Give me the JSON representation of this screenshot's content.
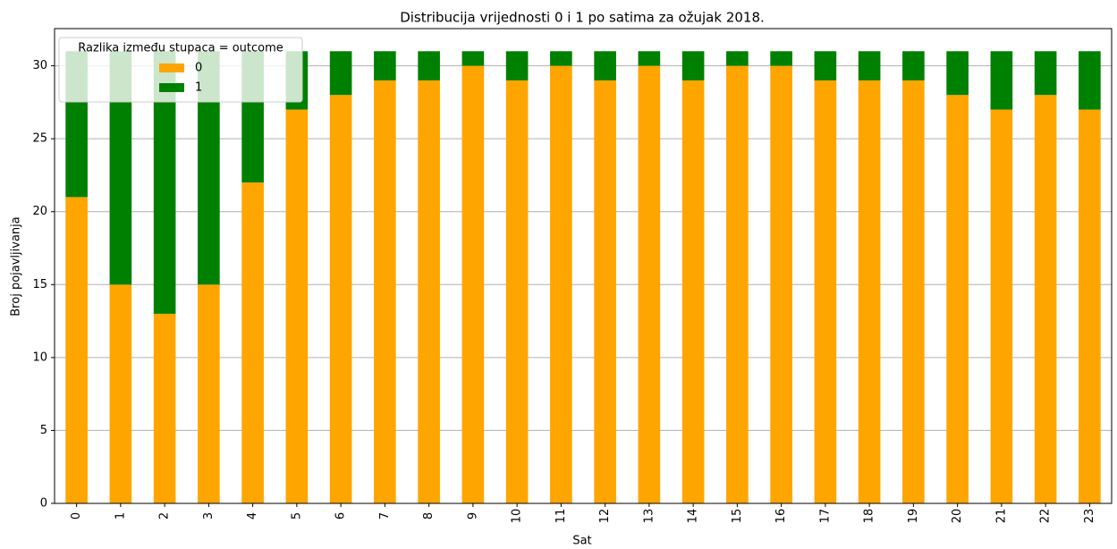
{
  "chart_data": {
    "type": "stacked_bar",
    "title": "Distribucija vrijednosti 0 i 1 po satima za ožujak 2018.",
    "x_label": "Sat",
    "y_label": "Broj pojavljivanja",
    "legend_title": "Razlika između stupaca = outcome",
    "legend": "upper left",
    "categories": [
      "0",
      "1",
      "2",
      "3",
      "4",
      "5",
      "6",
      "7",
      "8",
      "9",
      "10",
      "11",
      "12",
      "13",
      "14",
      "15",
      "16",
      "17",
      "18",
      "19",
      "20",
      "21",
      "22",
      "23"
    ],
    "series": [
      {
        "name": "0",
        "color": "#ffa500",
        "values": [
          21,
          15,
          13,
          15,
          22,
          27,
          28,
          29,
          29,
          30,
          29,
          30,
          29,
          30,
          29,
          30,
          30,
          29,
          29,
          29,
          28,
          27,
          28,
          27
        ]
      },
      {
        "name": "1",
        "color": "#008000",
        "values": [
          10,
          16,
          18,
          16,
          9,
          4,
          3,
          2,
          2,
          1,
          2,
          1,
          2,
          1,
          2,
          1,
          1,
          2,
          2,
          2,
          3,
          4,
          3,
          4
        ]
      }
    ],
    "ylim": [
      0,
      32.55
    ],
    "yticks": [
      0,
      5,
      10,
      15,
      20,
      25,
      30
    ],
    "grid": true
  }
}
